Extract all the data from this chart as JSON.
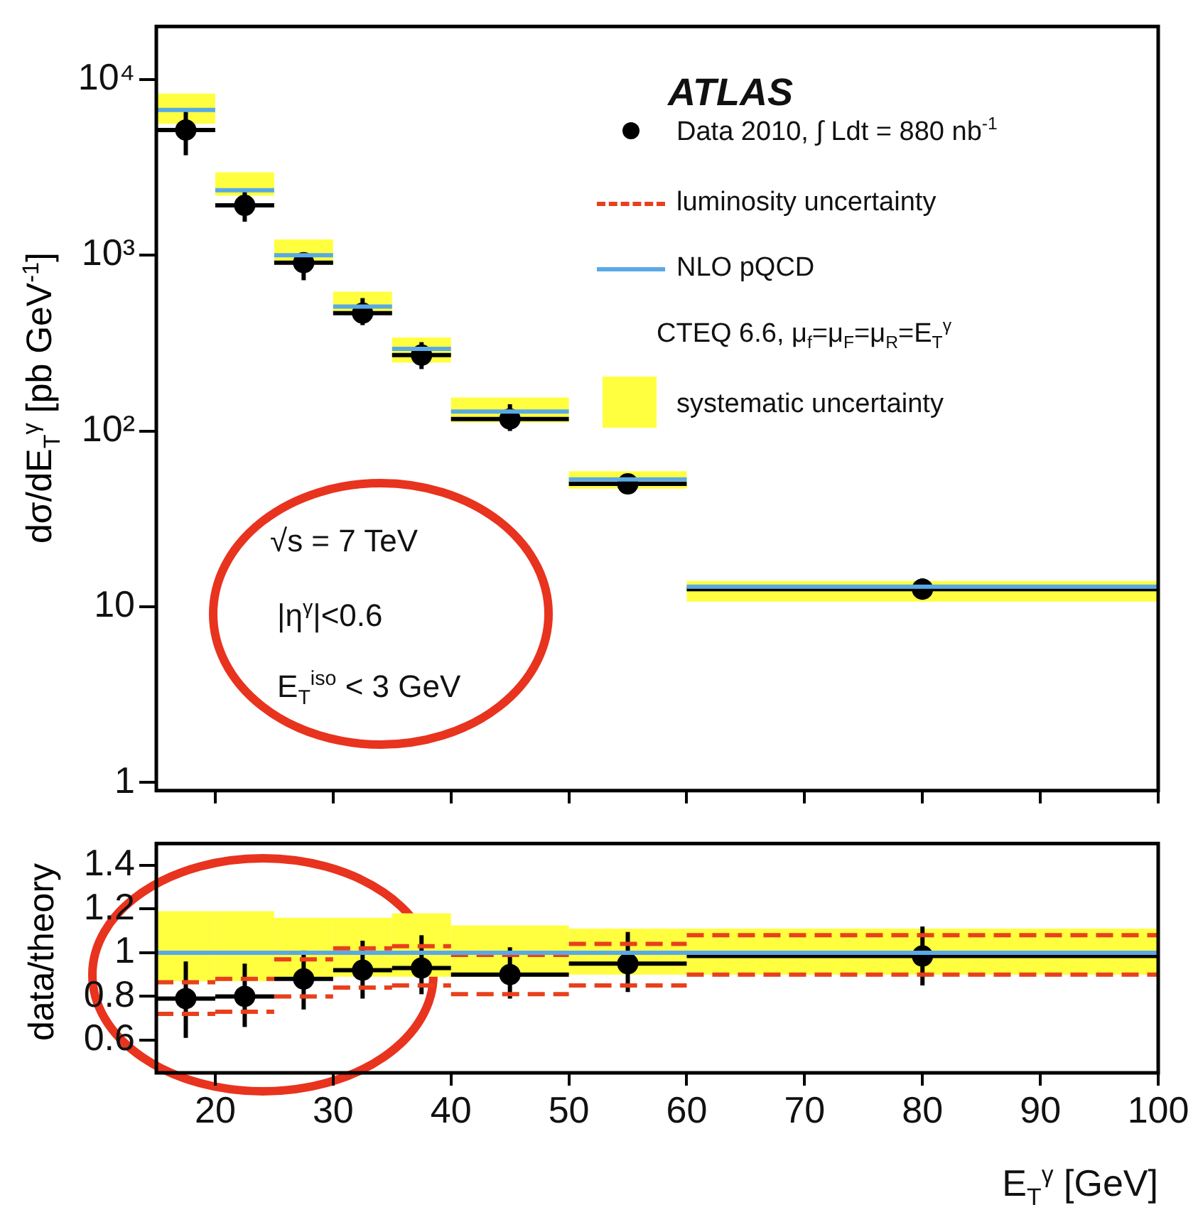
{
  "chart_data": [
    {
      "type": "scatter",
      "ylabel": "dσ/dE$_{T}$$^{γ}$ [pb GeV$^{-1}$]",
      "x": [
        17.5,
        22.5,
        27.5,
        32.5,
        37.5,
        45,
        55,
        80
      ],
      "xlim": [
        15,
        100
      ],
      "xticks": [
        20,
        30,
        40,
        50,
        60,
        70,
        80,
        90,
        100
      ],
      "ylim": [
        0.9,
        20000
      ],
      "yticks": [
        1,
        10,
        {
          "value": 100,
          "label": "10²"
        },
        {
          "value": 1000,
          "label": "10³"
        },
        {
          "value": 10000,
          "label": "10⁴"
        }
      ],
      "log": "y",
      "tick_labels": "y",
      "marker": "circle",
      "legend": "top right",
      "annotations": [
        "ATLAS",
        "CTEQ 6.6, μ$_{f}$=μ$_{F}$=μ$_{R}$=E$_{T}$$^{γ}$",
        "√s = 7 TeV",
        "|η$^{γ}$|<0.6",
        "E$_{T}$$^{iso}$ < 3 GeV"
      ],
      "series": [
        {
          "name": "Data 2010, ∫ Ldt = 880 nb$^{-1}$",
          "color": "#000000",
          "values": [
            5150,
            1920,
            906,
            468,
            270,
            117,
            50,
            12.6
          ],
          "errors": [
            [
              3700,
              6800
            ],
            [
              1550,
              2350
            ],
            [
              720,
              1000
            ],
            [
              400,
              570
            ],
            [
              225,
              320
            ],
            [
              100,
              142
            ],
            [
              44,
              57
            ],
            [
              11,
              14.5
            ]
          ],
          "xerrors": [
            2.5,
            2.5,
            2.5,
            2.5,
            2.5,
            5,
            5,
            20
          ]
        },
        {
          "name": "NLO pQCD",
          "type": "step",
          "marker": "none",
          "line_style": "solid",
          "color": "#5aa9e6",
          "x": [
            15,
            20,
            25,
            30,
            35,
            40,
            50,
            60,
            100
          ],
          "values": [
            6700,
            2340,
            1000,
            510,
            293,
            129,
            53,
            13,
            13
          ]
        },
        {
          "name": "systematic uncertainty",
          "type": "area",
          "color": "#ffff40",
          "x": [
            15,
            20,
            25,
            30,
            35,
            40,
            50,
            60,
            100
          ],
          "values": [
            null,
            null,
            null,
            null,
            null,
            null,
            null,
            null,
            null
          ],
          "lower": [
            5600,
            2180,
            895,
            480,
            245,
            112,
            47,
            10.7,
            10.7
          ],
          "upper": [
            8300,
            2960,
            1230,
            620,
            340,
            155,
            59,
            14,
            14
          ]
        }
      ]
    },
    {
      "type": "scatter",
      "xlabel": "E$_{T}$$^{γ}$ [GeV]",
      "ylabel": "data/theory",
      "x": [
        17.5,
        22.5,
        27.5,
        32.5,
        37.5,
        45,
        55,
        80
      ],
      "xlim": [
        15,
        100
      ],
      "xticks": [
        20,
        30,
        40,
        50,
        60,
        70,
        80,
        90,
        100
      ],
      "ylim": [
        0.45,
        1.5
      ],
      "yticks": [
        0.6,
        0.8,
        1,
        1.2,
        1.4
      ],
      "marker": "circle",
      "series": [
        {
          "type": "area",
          "color": "#ffff40",
          "x": [
            15,
            20,
            25,
            30,
            35,
            40,
            50,
            60,
            100
          ],
          "values": [
            null,
            null,
            null,
            null,
            null,
            null,
            null,
            null,
            null
          ],
          "lower": [
            0.87,
            0.87,
            0.88,
            0.89,
            0.89,
            0.89,
            0.9,
            0.9,
            0.9
          ],
          "upper": [
            1.19,
            1.19,
            1.16,
            1.16,
            1.18,
            1.125,
            1.11,
            1.11,
            1.11
          ]
        },
        {
          "type": "step",
          "marker": "none",
          "line_style": "solid",
          "color": "#5aa9e6",
          "x": [
            15,
            20,
            25,
            30,
            35,
            40,
            50,
            60,
            100
          ],
          "values": [
            1,
            1,
            1,
            1,
            1,
            1,
            1,
            1,
            1
          ]
        },
        {
          "name": "luminosity uncertainty",
          "type": "step",
          "marker": "none",
          "color": "#e8401c",
          "line_style": "dashed",
          "x": [
            15,
            20,
            25,
            30,
            35,
            40,
            50,
            60,
            100
          ],
          "values": [
            0.865,
            0.88,
            0.97,
            1.02,
            1.03,
            0.99,
            1.04,
            1.08,
            1.08
          ]
        },
        {
          "type": "step",
          "marker": "none",
          "color": "#e8401c",
          "line_style": "dashed",
          "x": [
            15,
            20,
            25,
            30,
            35,
            40,
            50,
            60,
            100
          ],
          "values": [
            0.72,
            0.73,
            0.8,
            0.84,
            0.85,
            0.81,
            0.85,
            0.9,
            0.9
          ]
        },
        {
          "color": "#000000",
          "values": [
            0.79,
            0.8,
            0.88,
            0.92,
            0.93,
            0.9,
            0.95,
            0.985
          ],
          "errors": [
            [
              0.61,
              0.96
            ],
            [
              0.66,
              0.95
            ],
            [
              0.74,
              1.01
            ],
            [
              0.79,
              1.055
            ],
            [
              0.81,
              1.08
            ],
            [
              0.79,
              1.025
            ],
            [
              0.82,
              1.095
            ],
            [
              0.85,
              1.12
            ]
          ],
          "xerrors": [
            2.5,
            2.5,
            2.5,
            2.5,
            2.5,
            5,
            5,
            20
          ]
        }
      ]
    }
  ]
}
